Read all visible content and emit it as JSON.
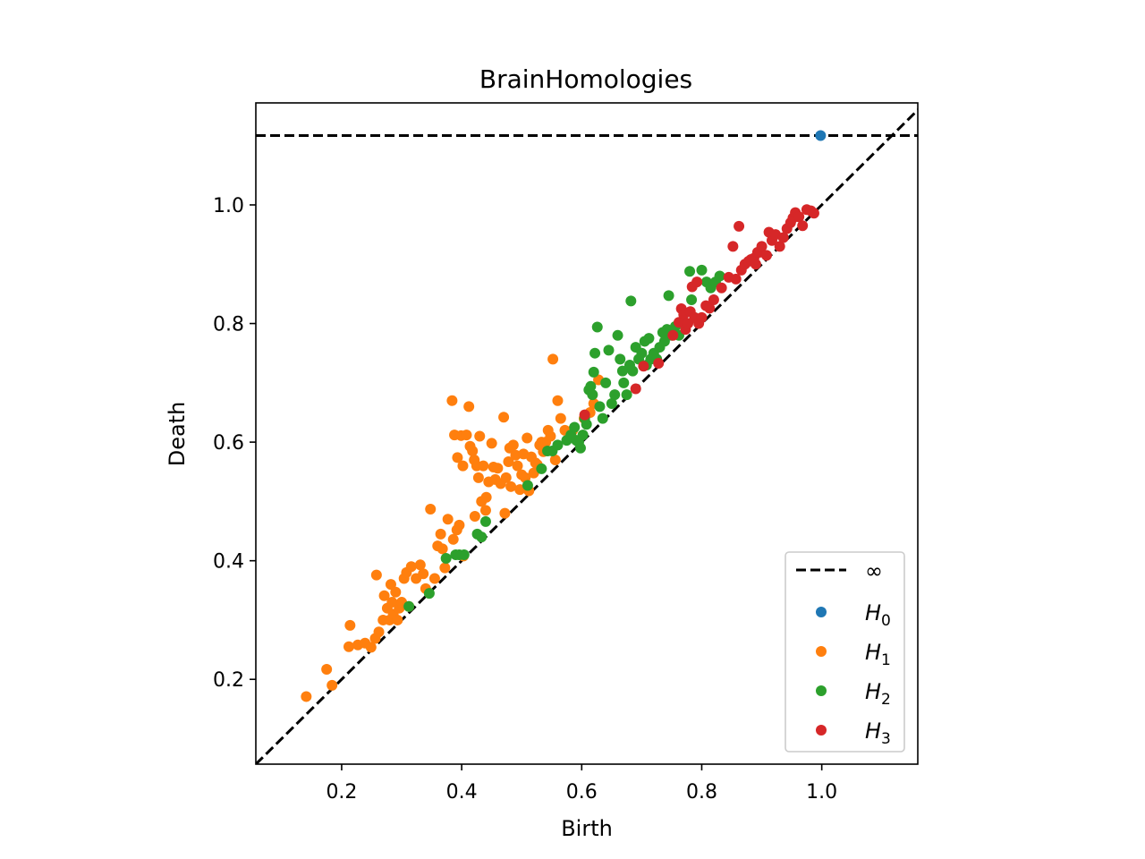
{
  "chart_data": {
    "type": "scatter",
    "title": "BrainHomologies",
    "xlabel": "Birth",
    "ylabel": "Death",
    "xlim": [
      0.057,
      1.16
    ],
    "ylim": [
      0.057,
      1.172
    ],
    "x_ticks": [
      0.2,
      0.4,
      0.6,
      0.8,
      1.0
    ],
    "x_tick_labels": [
      "0.2",
      "0.4",
      "0.6",
      "0.8",
      "1.0"
    ],
    "y_ticks": [
      0.2,
      0.4,
      0.6,
      0.8,
      1.0
    ],
    "y_tick_labels": [
      "0.2",
      "0.4",
      "0.6",
      "0.8",
      "1.0"
    ],
    "grid": false,
    "legend_position": "lower-right",
    "infinity_line": {
      "label": "∞",
      "death": 1.117,
      "color": "#000000",
      "style": "dashed"
    },
    "diagonal": {
      "color": "#000000",
      "style": "dashed"
    },
    "series": [
      {
        "name": "H",
        "subscript": "0",
        "color": "#1f77b4",
        "points": [
          [
            0.998,
            1.117
          ]
        ]
      },
      {
        "name": "H",
        "subscript": "1",
        "color": "#ff7f0e",
        "points": [
          [
            0.141,
            0.171
          ],
          [
            0.175,
            0.217
          ],
          [
            0.184,
            0.19
          ],
          [
            0.212,
            0.255
          ],
          [
            0.214,
            0.291
          ],
          [
            0.227,
            0.258
          ],
          [
            0.239,
            0.261
          ],
          [
            0.249,
            0.254
          ],
          [
            0.256,
            0.269
          ],
          [
            0.258,
            0.376
          ],
          [
            0.262,
            0.28
          ],
          [
            0.269,
            0.3
          ],
          [
            0.271,
            0.341
          ],
          [
            0.276,
            0.32
          ],
          [
            0.28,
            0.3
          ],
          [
            0.282,
            0.36
          ],
          [
            0.284,
            0.33
          ],
          [
            0.286,
            0.31
          ],
          [
            0.29,
            0.347
          ],
          [
            0.293,
            0.3
          ],
          [
            0.296,
            0.32
          ],
          [
            0.3,
            0.33
          ],
          [
            0.304,
            0.37
          ],
          [
            0.308,
            0.38
          ],
          [
            0.312,
            0.323
          ],
          [
            0.316,
            0.39
          ],
          [
            0.324,
            0.37
          ],
          [
            0.331,
            0.393
          ],
          [
            0.336,
            0.378
          ],
          [
            0.34,
            0.353
          ],
          [
            0.348,
            0.487
          ],
          [
            0.355,
            0.37
          ],
          [
            0.36,
            0.425
          ],
          [
            0.365,
            0.445
          ],
          [
            0.368,
            0.42
          ],
          [
            0.372,
            0.388
          ],
          [
            0.377,
            0.47
          ],
          [
            0.384,
            0.67
          ],
          [
            0.386,
            0.436
          ],
          [
            0.388,
            0.612
          ],
          [
            0.392,
            0.452
          ],
          [
            0.393,
            0.574
          ],
          [
            0.396,
            0.46
          ],
          [
            0.399,
            0.611
          ],
          [
            0.402,
            0.56
          ],
          [
            0.403,
            0.408
          ],
          [
            0.408,
            0.612
          ],
          [
            0.412,
            0.66
          ],
          [
            0.414,
            0.593
          ],
          [
            0.418,
            0.585
          ],
          [
            0.421,
            0.57
          ],
          [
            0.422,
            0.475
          ],
          [
            0.425,
            0.56
          ],
          [
            0.428,
            0.54
          ],
          [
            0.43,
            0.61
          ],
          [
            0.433,
            0.5
          ],
          [
            0.436,
            0.56
          ],
          [
            0.44,
            0.485
          ],
          [
            0.441,
            0.507
          ],
          [
            0.445,
            0.533
          ],
          [
            0.45,
            0.598
          ],
          [
            0.453,
            0.558
          ],
          [
            0.456,
            0.537
          ],
          [
            0.46,
            0.556
          ],
          [
            0.465,
            0.53
          ],
          [
            0.47,
            0.642
          ],
          [
            0.472,
            0.48
          ],
          [
            0.474,
            0.54
          ],
          [
            0.478,
            0.567
          ],
          [
            0.48,
            0.59
          ],
          [
            0.482,
            0.525
          ],
          [
            0.486,
            0.595
          ],
          [
            0.49,
            0.578
          ],
          [
            0.493,
            0.56
          ],
          [
            0.497,
            0.52
          ],
          [
            0.5,
            0.545
          ],
          [
            0.503,
            0.58
          ],
          [
            0.506,
            0.54
          ],
          [
            0.509,
            0.607
          ],
          [
            0.512,
            0.518
          ],
          [
            0.516,
            0.575
          ],
          [
            0.52,
            0.548
          ],
          [
            0.523,
            0.565
          ],
          [
            0.526,
            0.562
          ],
          [
            0.53,
            0.595
          ],
          [
            0.533,
            0.6
          ],
          [
            0.536,
            0.584
          ],
          [
            0.54,
            0.6
          ],
          [
            0.544,
            0.62
          ],
          [
            0.548,
            0.61
          ],
          [
            0.552,
            0.74
          ],
          [
            0.556,
            0.57
          ],
          [
            0.56,
            0.67
          ],
          [
            0.565,
            0.64
          ],
          [
            0.572,
            0.62
          ],
          [
            0.585,
            0.62
          ],
          [
            0.604,
            0.64
          ],
          [
            0.614,
            0.65
          ],
          [
            0.62,
            0.665
          ],
          [
            0.628,
            0.705
          ]
        ]
      },
      {
        "name": "H",
        "subscript": "2",
        "color": "#2ca02c",
        "points": [
          [
            0.312,
            0.323
          ],
          [
            0.346,
            0.345
          ],
          [
            0.374,
            0.404
          ],
          [
            0.39,
            0.41
          ],
          [
            0.396,
            0.41
          ],
          [
            0.404,
            0.41
          ],
          [
            0.426,
            0.445
          ],
          [
            0.433,
            0.44
          ],
          [
            0.44,
            0.466
          ],
          [
            0.51,
            0.527
          ],
          [
            0.533,
            0.555
          ],
          [
            0.543,
            0.585
          ],
          [
            0.551,
            0.585
          ],
          [
            0.56,
            0.595
          ],
          [
            0.575,
            0.603
          ],
          [
            0.582,
            0.612
          ],
          [
            0.588,
            0.625
          ],
          [
            0.591,
            0.603
          ],
          [
            0.595,
            0.6
          ],
          [
            0.598,
            0.59
          ],
          [
            0.602,
            0.612
          ],
          [
            0.605,
            0.64
          ],
          [
            0.608,
            0.63
          ],
          [
            0.612,
            0.688
          ],
          [
            0.615,
            0.694
          ],
          [
            0.618,
            0.68
          ],
          [
            0.62,
            0.718
          ],
          [
            0.622,
            0.75
          ],
          [
            0.626,
            0.794
          ],
          [
            0.63,
            0.66
          ],
          [
            0.635,
            0.64
          ],
          [
            0.64,
            0.7
          ],
          [
            0.645,
            0.755
          ],
          [
            0.65,
            0.665
          ],
          [
            0.655,
            0.68
          ],
          [
            0.66,
            0.78
          ],
          [
            0.664,
            0.74
          ],
          [
            0.668,
            0.72
          ],
          [
            0.67,
            0.7
          ],
          [
            0.675,
            0.68
          ],
          [
            0.68,
            0.73
          ],
          [
            0.682,
            0.838
          ],
          [
            0.685,
            0.72
          ],
          [
            0.69,
            0.76
          ],
          [
            0.695,
            0.74
          ],
          [
            0.7,
            0.75
          ],
          [
            0.705,
            0.77
          ],
          [
            0.708,
            0.73
          ],
          [
            0.712,
            0.775
          ],
          [
            0.715,
            0.74
          ],
          [
            0.72,
            0.75
          ],
          [
            0.725,
            0.74
          ],
          [
            0.73,
            0.76
          ],
          [
            0.735,
            0.785
          ],
          [
            0.738,
            0.77
          ],
          [
            0.742,
            0.79
          ],
          [
            0.745,
            0.847
          ],
          [
            0.75,
            0.78
          ],
          [
            0.756,
            0.795
          ],
          [
            0.762,
            0.78
          ],
          [
            0.772,
            0.8
          ],
          [
            0.78,
            0.888
          ],
          [
            0.783,
            0.84
          ],
          [
            0.788,
            0.81
          ],
          [
            0.8,
            0.89
          ],
          [
            0.808,
            0.87
          ],
          [
            0.815,
            0.86
          ],
          [
            0.823,
            0.87
          ],
          [
            0.83,
            0.88
          ]
        ]
      },
      {
        "name": "H",
        "subscript": "3",
        "color": "#d62728",
        "points": [
          [
            0.605,
            0.646
          ],
          [
            0.69,
            0.69
          ],
          [
            0.703,
            0.728
          ],
          [
            0.728,
            0.733
          ],
          [
            0.752,
            0.78
          ],
          [
            0.762,
            0.802
          ],
          [
            0.766,
            0.825
          ],
          [
            0.77,
            0.815
          ],
          [
            0.773,
            0.79
          ],
          [
            0.777,
            0.8
          ],
          [
            0.781,
            0.82
          ],
          [
            0.784,
            0.862
          ],
          [
            0.788,
            0.81
          ],
          [
            0.792,
            0.87
          ],
          [
            0.795,
            0.8
          ],
          [
            0.8,
            0.81
          ],
          [
            0.807,
            0.83
          ],
          [
            0.813,
            0.826
          ],
          [
            0.82,
            0.84
          ],
          [
            0.833,
            0.86
          ],
          [
            0.845,
            0.878
          ],
          [
            0.852,
            0.93
          ],
          [
            0.857,
            0.875
          ],
          [
            0.862,
            0.964
          ],
          [
            0.866,
            0.89
          ],
          [
            0.872,
            0.9
          ],
          [
            0.878,
            0.905
          ],
          [
            0.882,
            0.908
          ],
          [
            0.887,
            0.91
          ],
          [
            0.89,
            0.9
          ],
          [
            0.893,
            0.92
          ],
          [
            0.896,
            0.92
          ],
          [
            0.9,
            0.93
          ],
          [
            0.908,
            0.915
          ],
          [
            0.912,
            0.954
          ],
          [
            0.917,
            0.94
          ],
          [
            0.923,
            0.95
          ],
          [
            0.93,
            0.93
          ],
          [
            0.936,
            0.945
          ],
          [
            0.942,
            0.96
          ],
          [
            0.948,
            0.97
          ],
          [
            0.952,
            0.978
          ],
          [
            0.956,
            0.987
          ],
          [
            0.962,
            0.98
          ],
          [
            0.968,
            0.965
          ],
          [
            0.975,
            0.992
          ],
          [
            0.982,
            0.99
          ],
          [
            0.987,
            0.986
          ]
        ]
      }
    ]
  }
}
